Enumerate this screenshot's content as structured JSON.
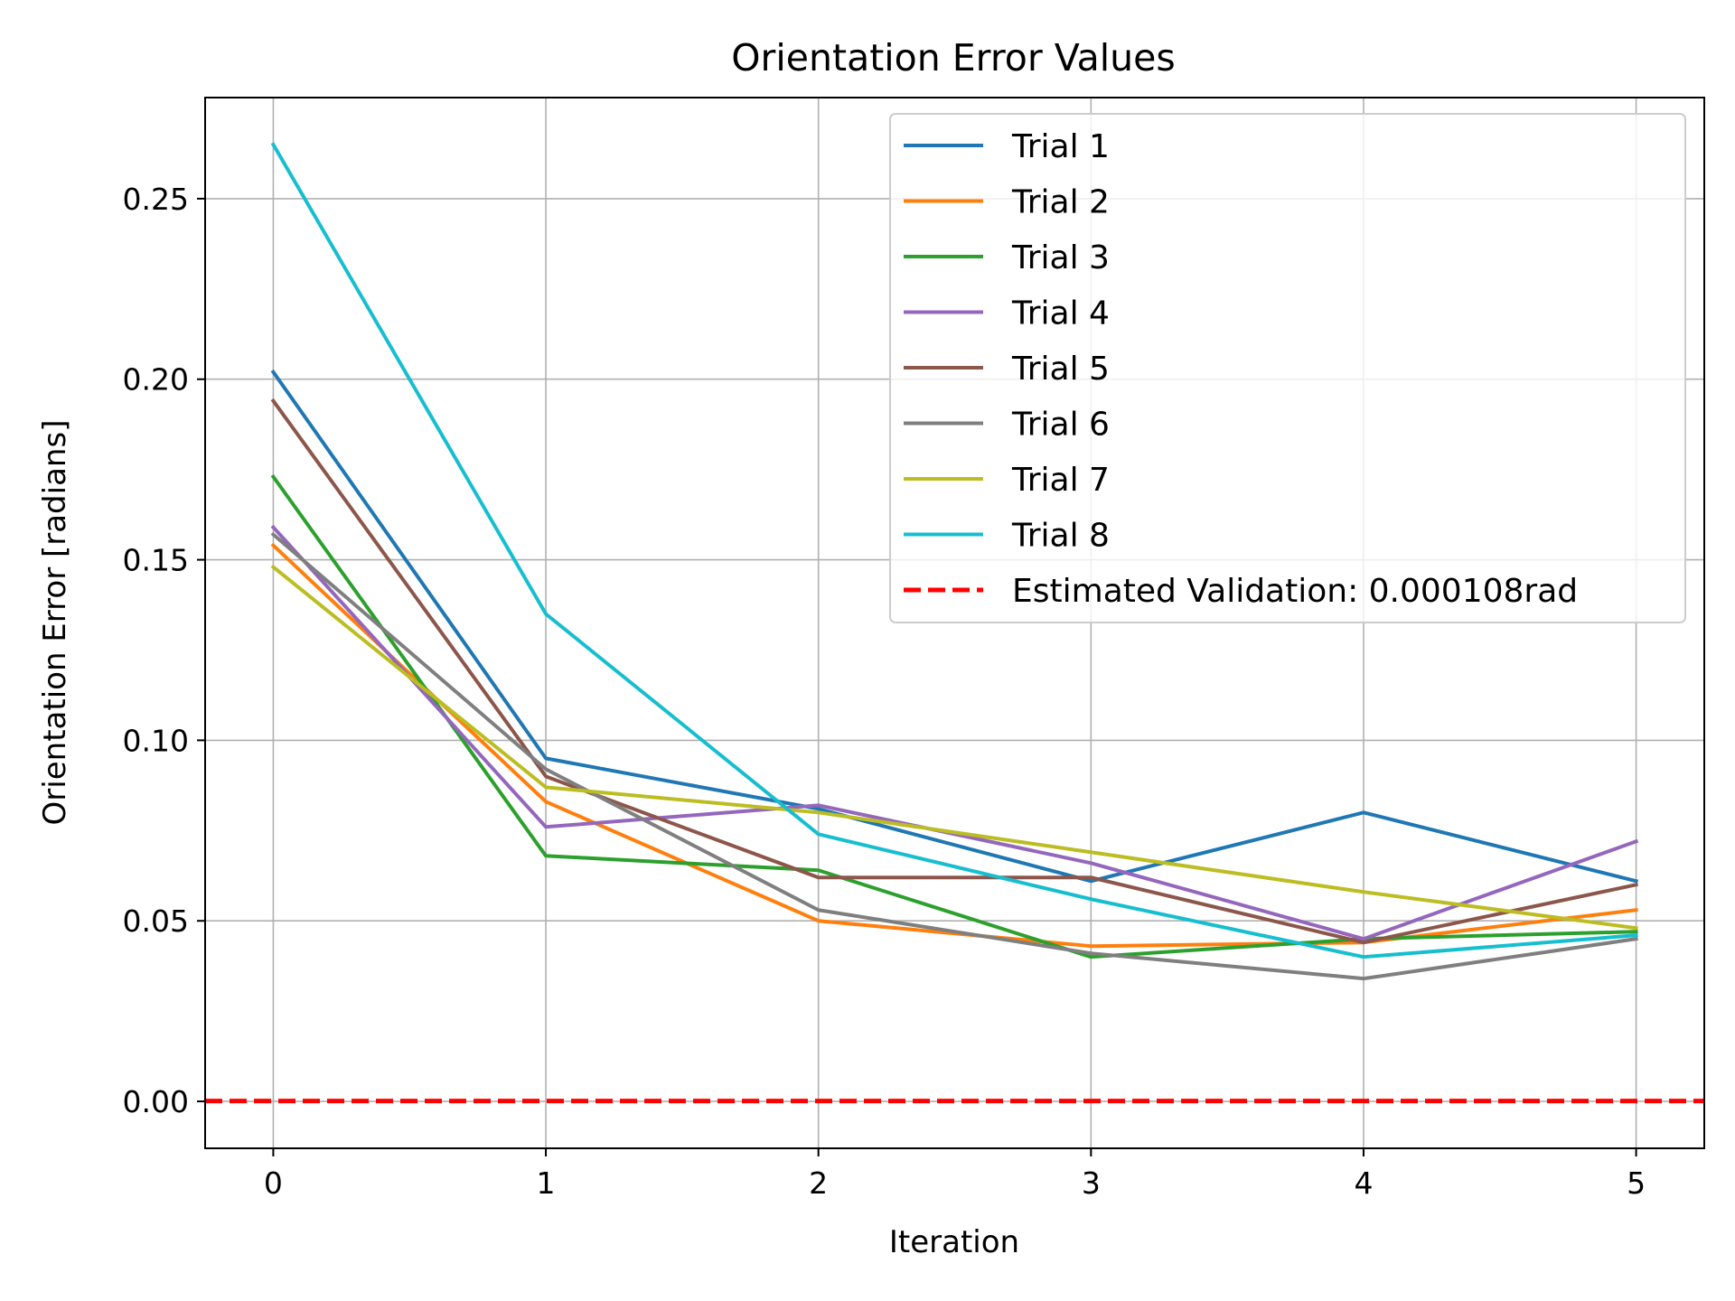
{
  "chart_data": {
    "type": "line",
    "title": "Orientation Error Values",
    "xlabel": "Iteration",
    "ylabel": "Orientation Error [radians]",
    "x": [
      0,
      1,
      2,
      3,
      4,
      5
    ],
    "xticks": [
      "0",
      "1",
      "2",
      "3",
      "4",
      "5"
    ],
    "yticks": [
      "0.00",
      "0.05",
      "0.10",
      "0.15",
      "0.20",
      "0.25"
    ],
    "xlim": [
      -0.25,
      5.25
    ],
    "ylim": [
      -0.013,
      0.278
    ],
    "grid": true,
    "legend_position": "upper-right",
    "series": [
      {
        "name": "Trial 1",
        "color": "#1f77b4",
        "values": [
          0.202,
          0.095,
          0.081,
          0.061,
          0.08,
          0.061
        ]
      },
      {
        "name": "Trial 2",
        "color": "#ff7f0e",
        "values": [
          0.154,
          0.083,
          0.05,
          0.043,
          0.044,
          0.053
        ]
      },
      {
        "name": "Trial 3",
        "color": "#2ca02c",
        "values": [
          0.173,
          0.068,
          0.064,
          0.04,
          0.045,
          0.047
        ]
      },
      {
        "name": "Trial 4",
        "color": "#9467bd",
        "values": [
          0.159,
          0.076,
          0.082,
          0.066,
          0.045,
          0.072
        ]
      },
      {
        "name": "Trial 5",
        "color": "#8c564b",
        "values": [
          0.194,
          0.09,
          0.062,
          0.062,
          0.044,
          0.06
        ]
      },
      {
        "name": "Trial 6",
        "color": "#7f7f7f",
        "values": [
          0.157,
          0.092,
          0.053,
          0.041,
          0.034,
          0.045
        ]
      },
      {
        "name": "Trial 7",
        "color": "#bcbd22",
        "values": [
          0.148,
          0.087,
          0.08,
          0.069,
          0.058,
          0.048
        ]
      },
      {
        "name": "Trial 8",
        "color": "#17becf",
        "values": [
          0.265,
          0.135,
          0.074,
          0.056,
          0.04,
          0.046
        ]
      }
    ],
    "reference_line": {
      "name": "Estimated Validation: 0.000108rad",
      "value": 0.000108,
      "color": "#ff0000",
      "style": "dashed"
    }
  }
}
